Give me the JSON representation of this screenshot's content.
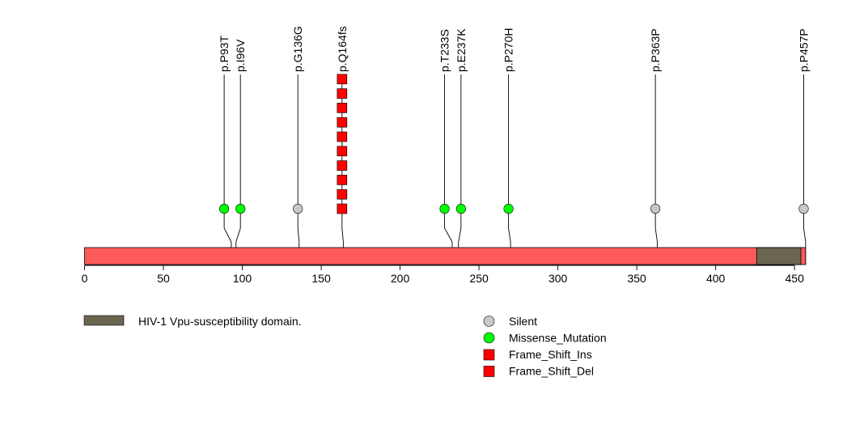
{
  "chart_data": {
    "type": "lollipop",
    "protein_length": 457,
    "x_axis": {
      "ticks": [
        0,
        50,
        100,
        150,
        200,
        250,
        300,
        350,
        400,
        450
      ],
      "range": [
        0,
        457
      ]
    },
    "colors": {
      "protein_bar": "#FF5A5A",
      "domain": "#6B6650",
      "Silent": "#C8C8C8",
      "Missense_Mutation": "#00FF00",
      "Frame_Shift_Ins": "#FF0000",
      "Frame_Shift_Del": "#FF0000"
    },
    "domains": [
      {
        "name": "HIV-1 Vpu-susceptibility domain.",
        "start": 426,
        "end": 454
      }
    ],
    "mutations": [
      {
        "label": "p.P93T",
        "position": 93,
        "type": "Missense_Mutation",
        "count": 1,
        "marker_pos": 88.5
      },
      {
        "label": "p.I96V",
        "position": 96,
        "type": "Missense_Mutation",
        "count": 1,
        "marker_pos": 98.8
      },
      {
        "label": "p.G136G",
        "position": 136,
        "type": "Silent",
        "count": 1,
        "marker_pos": 135.2
      },
      {
        "label": "p.Q164fs",
        "position": 164,
        "type": "Frame_Shift_Del",
        "count": 10,
        "marker_pos": 163.2
      },
      {
        "label": "p.T233S",
        "position": 233,
        "type": "Missense_Mutation",
        "count": 1,
        "marker_pos": 228.2
      },
      {
        "label": "p.E237K",
        "position": 237,
        "type": "Missense_Mutation",
        "count": 1,
        "marker_pos": 238.6
      },
      {
        "label": "p.P270H",
        "position": 270,
        "type": "Missense_Mutation",
        "count": 1,
        "marker_pos": 268.7
      },
      {
        "label": "p.P363P",
        "position": 363,
        "type": "Silent",
        "count": 1,
        "marker_pos": 361.8
      },
      {
        "label": "p.P457P",
        "position": 457,
        "type": "Silent",
        "count": 1,
        "marker_pos": 455.8
      }
    ],
    "legend": {
      "domains": [
        "HIV-1 Vpu-susceptibility domain."
      ],
      "mutation_types": [
        "Silent",
        "Missense_Mutation",
        "Frame_Shift_Ins",
        "Frame_Shift_Del"
      ]
    }
  }
}
